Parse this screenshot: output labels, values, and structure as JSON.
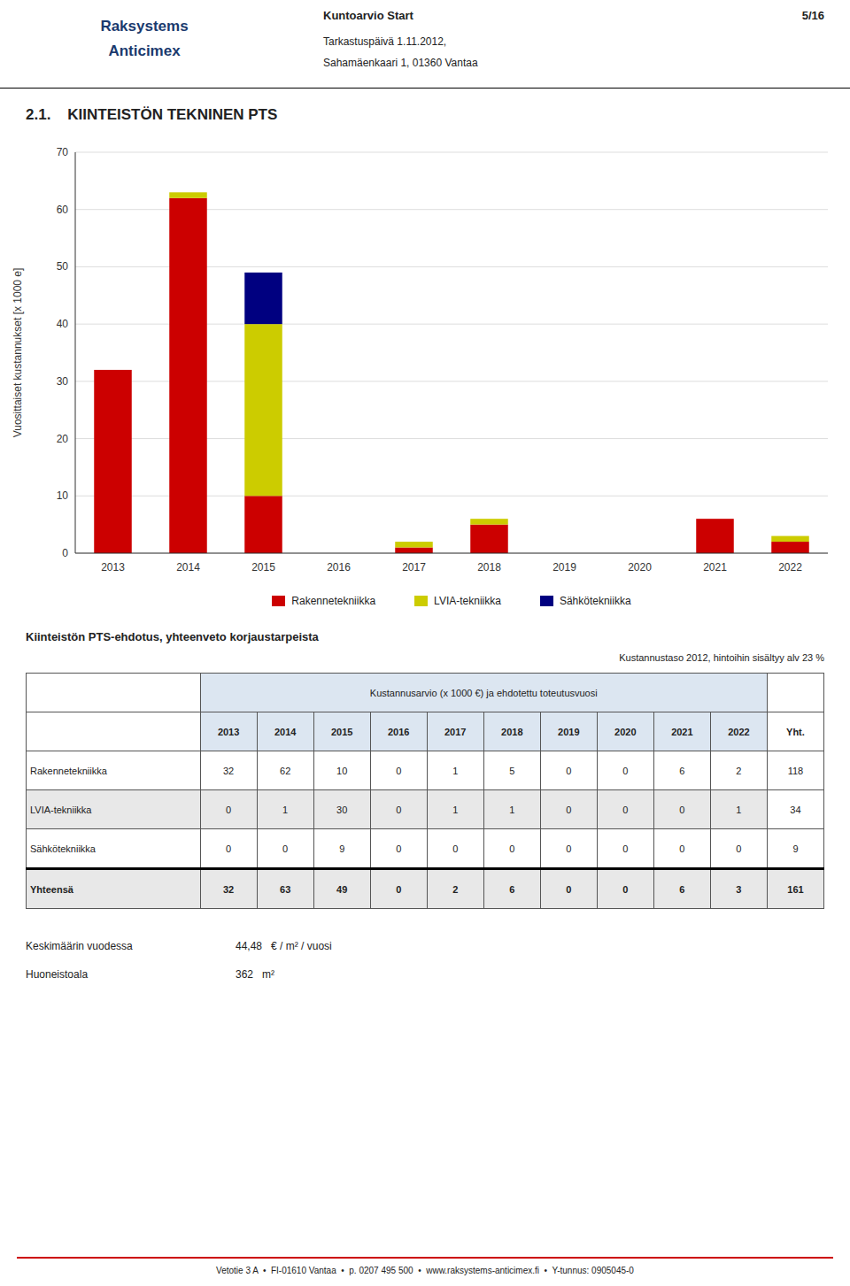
{
  "page": {
    "logo": [
      "Raksystems",
      "Anticimex"
    ],
    "header_center": [
      "Kuntoarvio Start",
      "Tarkastuspäivä 1.11.2012,",
      "Sahamäenkaari 1, 01360 Vantaa"
    ],
    "header_right": "5/16",
    "section_title": "2.1.    KIINTEISTÖN TEKNINEN PTS",
    "footer_text": "Vetotie 3 A  •  FI-01610 Vantaa  •  p. 0207 495 500  •  www.raksystems-anticimex.fi  •  Y-tunnus: 0905045-0"
  },
  "chart_data": {
    "type": "bar",
    "stacked": true,
    "categories": [
      "2013",
      "2014",
      "2015",
      "2016",
      "2017",
      "2018",
      "2019",
      "2020",
      "2021",
      "2022"
    ],
    "series": [
      {
        "name": "Rakennetekniikka",
        "color": "#CC0000",
        "values": [
          32,
          62,
          10,
          0,
          1,
          5,
          0,
          0,
          6,
          2
        ]
      },
      {
        "name": "LVIA-tekniikka",
        "color": "#CCCC00",
        "values": [
          0,
          1,
          30,
          0,
          1,
          1,
          0,
          0,
          0,
          1
        ]
      },
      {
        "name": "Sähkötekniikka",
        "color": "#000080",
        "values": [
          0,
          0,
          9,
          0,
          0,
          0,
          0,
          0,
          0,
          0
        ]
      }
    ],
    "ylabel": "Vuosittaiset kustannukset [x 1000 e]",
    "ylim": [
      0,
      70
    ],
    "yticks": [
      0,
      10,
      20,
      30,
      40,
      50,
      60,
      70
    ],
    "grid": true,
    "legend": "bottom"
  },
  "table": {
    "title": "Kiinteistön PTS-ehdotus, yhteenveto korjaustarpeista",
    "subtitle": "Kustannustaso 2012, hintoihin sisältyy alv 23 %",
    "header": "Kustannusarvio (x 1000 €) ja ehdotettu toteutusvuosi",
    "col_years": [
      "2013",
      "2014",
      "2015",
      "2016",
      "2017",
      "2018",
      "2019",
      "2020",
      "2021",
      "2022",
      "Yht."
    ],
    "rows": [
      {
        "label": "Rakennetekniikka",
        "values": [
          32,
          62,
          10,
          0,
          1,
          5,
          0,
          0,
          6,
          2,
          118
        ]
      },
      {
        "label": "LVIA-tekniikka",
        "values": [
          0,
          1,
          30,
          0,
          1,
          1,
          0,
          0,
          0,
          1,
          34
        ]
      },
      {
        "label": "Sähkötekniikka",
        "values": [
          0,
          0,
          9,
          0,
          0,
          0,
          0,
          0,
          0,
          0,
          9
        ]
      }
    ],
    "total_label": "Yhteensä",
    "total_values": [
      32,
      63,
      49,
      0,
      2,
      6,
      0,
      0,
      6,
      3,
      161
    ]
  },
  "summary": [
    {
      "label": "Keskimäärin vuodessa",
      "value": "44,48",
      "unit": "€ / m² / vuosi"
    },
    {
      "label": "Huoneistoala",
      "value": "362",
      "unit": "m²"
    }
  ]
}
